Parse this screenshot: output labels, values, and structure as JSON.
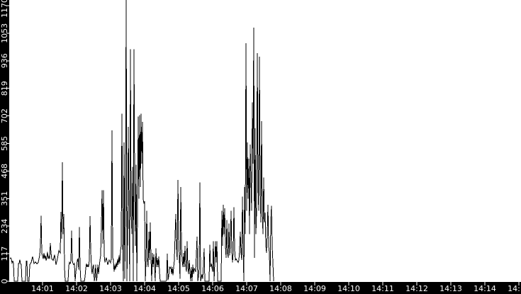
{
  "chart_data": {
    "type": "line",
    "title": "",
    "xlabel": "",
    "ylabel": "",
    "legend": "none",
    "grid": false,
    "background_color": "#ffffff",
    "line_color": "#000000",
    "axis_bar_color": "#000000",
    "axis_text_color": "#ffffff",
    "y_ticks": [
      0,
      117,
      234,
      351,
      468,
      585,
      702,
      819,
      936,
      1053,
      1170
    ],
    "ylim": [
      0,
      1194
    ],
    "y_max_spike_clipped": true,
    "x_ticks": [
      [
        1,
        "14:01"
      ],
      [
        2,
        "14:02"
      ],
      [
        3,
        "14:03"
      ],
      [
        4,
        "14:04"
      ],
      [
        5,
        "14:05"
      ],
      [
        6,
        "14:06"
      ],
      [
        7,
        "14:07"
      ],
      [
        8,
        "14:08"
      ],
      [
        9,
        "14:09"
      ],
      [
        10,
        "14:10"
      ],
      [
        11,
        "14:11"
      ],
      [
        12,
        "14:12"
      ],
      [
        13,
        "14:13"
      ],
      [
        14,
        "14:14"
      ],
      [
        15,
        "14:15"
      ]
    ],
    "x_axis_start": "14:00",
    "x_axis_end": "14:15",
    "data_ends_at_seconds": 467.5,
    "points_unit": "[seconds after 14:00, value]",
    "points": [
      [
        2.5,
        95
      ],
      [
        3.8,
        100
      ],
      [
        5,
        95
      ],
      [
        6.3,
        78
      ],
      [
        7.5,
        85
      ],
      [
        8.8,
        78
      ],
      [
        10,
        0
      ],
      [
        16.3,
        0
      ],
      [
        17.5,
        75
      ],
      [
        18.8,
        75
      ],
      [
        20,
        92
      ],
      [
        21.3,
        74
      ],
      [
        22.5,
        70
      ],
      [
        23.8,
        0
      ],
      [
        30,
        0
      ],
      [
        31.3,
        85
      ],
      [
        32.5,
        85
      ],
      [
        33.8,
        0
      ],
      [
        36.3,
        0
      ],
      [
        37.5,
        70
      ],
      [
        40,
        80
      ],
      [
        42.5,
        105
      ],
      [
        45,
        75
      ],
      [
        47.5,
        82
      ],
      [
        50,
        74
      ],
      [
        52.5,
        80
      ],
      [
        55,
        110
      ],
      [
        56.3,
        150
      ],
      [
        57.5,
        278
      ],
      [
        58.8,
        118
      ],
      [
        61.3,
        95
      ],
      [
        62.5,
        120
      ],
      [
        63.8,
        95
      ],
      [
        65,
        110
      ],
      [
        66.3,
        88
      ],
      [
        67.5,
        100
      ],
      [
        68.8,
        125
      ],
      [
        70,
        95
      ],
      [
        71.3,
        105
      ],
      [
        72.5,
        95
      ],
      [
        73.8,
        163
      ],
      [
        75,
        120
      ],
      [
        76.3,
        95
      ],
      [
        78.8,
        88
      ],
      [
        81.3,
        112
      ],
      [
        83.8,
        70
      ],
      [
        86.3,
        95
      ],
      [
        88.8,
        130
      ],
      [
        91.3,
        120
      ],
      [
        92.5,
        295
      ],
      [
        93.8,
        180
      ],
      [
        95,
        505
      ],
      [
        96.3,
        200
      ],
      [
        97.5,
        285
      ],
      [
        98.8,
        60
      ],
      [
        100,
        0
      ],
      [
        105,
        0
      ],
      [
        106.3,
        65
      ],
      [
        107.5,
        80
      ],
      [
        108.8,
        75
      ],
      [
        110,
        85
      ],
      [
        111.3,
        215
      ],
      [
        112.5,
        90
      ],
      [
        113.8,
        75
      ],
      [
        115,
        70
      ],
      [
        116.3,
        75
      ],
      [
        117.5,
        0
      ],
      [
        118.8,
        40
      ],
      [
        120,
        60
      ],
      [
        121.3,
        90
      ],
      [
        122.5,
        95
      ],
      [
        123.8,
        50
      ],
      [
        125,
        230
      ],
      [
        126.3,
        60
      ],
      [
        127.5,
        0
      ],
      [
        133.8,
        0
      ],
      [
        135,
        20
      ],
      [
        136.3,
        55
      ],
      [
        137.5,
        75
      ],
      [
        138.8,
        60
      ],
      [
        140,
        70
      ],
      [
        141.3,
        60
      ],
      [
        142.5,
        90
      ],
      [
        143.8,
        277
      ],
      [
        145,
        130
      ],
      [
        146.3,
        60
      ],
      [
        147.5,
        30
      ],
      [
        148.8,
        60
      ],
      [
        150,
        70
      ],
      [
        151.3,
        0
      ],
      [
        152.5,
        20
      ],
      [
        153.8,
        70
      ],
      [
        155,
        0
      ],
      [
        156.3,
        20
      ],
      [
        157.5,
        70
      ],
      [
        158.8,
        30
      ],
      [
        160,
        60
      ],
      [
        161.3,
        90
      ],
      [
        162.5,
        110
      ],
      [
        163.8,
        235
      ],
      [
        165,
        387
      ],
      [
        166.3,
        160
      ],
      [
        167.5,
        387
      ],
      [
        168.8,
        110
      ],
      [
        170,
        80
      ],
      [
        172.5,
        100
      ],
      [
        175,
        70
      ],
      [
        177.5,
        90
      ],
      [
        180,
        78
      ],
      [
        181.3,
        95
      ],
      [
        182.5,
        640
      ],
      [
        183.8,
        100
      ],
      [
        185,
        90
      ],
      [
        186.3,
        40
      ],
      [
        187.5,
        70
      ],
      [
        188.8,
        50
      ],
      [
        190,
        80
      ],
      [
        191.3,
        60
      ],
      [
        192.5,
        95
      ],
      [
        193.8,
        70
      ],
      [
        195,
        110
      ],
      [
        196.3,
        75
      ],
      [
        197.5,
        130
      ],
      [
        198.8,
        150
      ],
      [
        200,
        712
      ],
      [
        201.3,
        180
      ],
      [
        202.5,
        0
      ],
      [
        203.8,
        590
      ],
      [
        205,
        10
      ],
      [
        206.3,
        300
      ],
      [
        207.5,
        1210
      ],
      [
        208.8,
        0
      ],
      [
        210,
        200
      ],
      [
        211.3,
        655
      ],
      [
        212.5,
        300
      ],
      [
        213.8,
        0
      ],
      [
        215,
        985
      ],
      [
        216.3,
        300
      ],
      [
        217.5,
        200
      ],
      [
        218.8,
        485
      ],
      [
        220,
        0
      ],
      [
        221.3,
        985
      ],
      [
        222.5,
        400
      ],
      [
        223.8,
        150
      ],
      [
        225,
        495
      ],
      [
        226.3,
        0
      ],
      [
        227.5,
        300
      ],
      [
        228.8,
        700
      ],
      [
        230,
        350
      ],
      [
        231.3,
        705
      ],
      [
        232.5,
        400
      ],
      [
        233.8,
        712
      ],
      [
        235,
        500
      ],
      [
        236.3,
        676
      ],
      [
        237.5,
        350
      ],
      [
        238.8,
        330
      ],
      [
        240,
        340
      ],
      [
        241.3,
        0
      ],
      [
        242.5,
        80
      ],
      [
        243.8,
        300
      ],
      [
        245,
        90
      ],
      [
        246.3,
        60
      ],
      [
        247.5,
        210
      ],
      [
        248.8,
        90
      ],
      [
        250,
        250
      ],
      [
        251.3,
        100
      ],
      [
        252.5,
        0
      ],
      [
        253.8,
        120
      ],
      [
        255,
        60
      ],
      [
        256.3,
        115
      ],
      [
        257.5,
        60
      ],
      [
        258.8,
        0
      ],
      [
        260,
        140
      ],
      [
        261.3,
        60
      ],
      [
        262.5,
        100
      ],
      [
        263.8,
        60
      ],
      [
        265,
        105
      ],
      [
        266.3,
        40
      ],
      [
        267.5,
        0
      ],
      [
        277.5,
        0
      ],
      [
        278.8,
        5
      ],
      [
        280,
        118
      ],
      [
        281.3,
        5
      ],
      [
        282.5,
        20
      ],
      [
        283.8,
        60
      ],
      [
        285,
        55
      ],
      [
        286.3,
        60
      ],
      [
        287.5,
        30
      ],
      [
        288.8,
        60
      ],
      [
        290,
        25
      ],
      [
        291.3,
        60
      ],
      [
        292.5,
        90
      ],
      [
        293.8,
        195
      ],
      [
        295,
        285
      ],
      [
        296.3,
        150
      ],
      [
        297.5,
        90
      ],
      [
        298.8,
        430
      ],
      [
        300,
        200
      ],
      [
        301.3,
        100
      ],
      [
        302.5,
        10
      ],
      [
        303.8,
        400
      ],
      [
        305,
        150
      ],
      [
        306.3,
        90
      ],
      [
        307.5,
        60
      ],
      [
        308.8,
        120
      ],
      [
        310,
        60
      ],
      [
        311.3,
        150
      ],
      [
        312.5,
        70
      ],
      [
        313.8,
        40
      ],
      [
        315,
        170
      ],
      [
        316.3,
        60
      ],
      [
        317.5,
        30
      ],
      [
        318.8,
        90
      ],
      [
        320,
        40
      ],
      [
        321.3,
        0
      ],
      [
        322.5,
        60
      ],
      [
        323.8,
        0
      ],
      [
        325,
        70
      ],
      [
        326.3,
        30
      ],
      [
        327.5,
        55
      ],
      [
        330,
        40
      ],
      [
        332.5,
        190
      ],
      [
        333.8,
        0
      ],
      [
        335,
        20
      ],
      [
        336.3,
        60
      ],
      [
        337.5,
        420
      ],
      [
        338.8,
        0
      ],
      [
        341.3,
        30
      ],
      [
        342.5,
        10
      ],
      [
        345,
        140
      ],
      [
        346.3,
        0
      ],
      [
        353.8,
        0
      ],
      [
        355,
        155
      ],
      [
        356.3,
        60
      ],
      [
        357.5,
        75
      ],
      [
        358.8,
        60
      ],
      [
        360,
        40
      ],
      [
        361.3,
        170
      ],
      [
        362.5,
        0
      ],
      [
        363.8,
        80
      ],
      [
        365,
        170
      ],
      [
        366.3,
        80
      ],
      [
        367.5,
        170
      ],
      [
        368.8,
        0
      ],
      [
        375,
        0
      ],
      [
        376.3,
        300
      ],
      [
        377.5,
        150
      ],
      [
        378.8,
        325
      ],
      [
        380,
        200
      ],
      [
        381.3,
        310
      ],
      [
        382.5,
        150
      ],
      [
        383.8,
        100
      ],
      [
        385,
        260
      ],
      [
        386.3,
        120
      ],
      [
        387.5,
        100
      ],
      [
        388.8,
        245
      ],
      [
        390,
        110
      ],
      [
        391.3,
        150
      ],
      [
        392.5,
        300
      ],
      [
        393.8,
        130
      ],
      [
        395,
        80
      ],
      [
        396.3,
        120
      ],
      [
        397.5,
        315
      ],
      [
        398.8,
        140
      ],
      [
        400,
        90
      ],
      [
        401.3,
        95
      ],
      [
        402.5,
        90
      ],
      [
        403.8,
        85
      ],
      [
        405,
        80
      ],
      [
        406.3,
        90
      ],
      [
        407.5,
        130
      ],
      [
        408.8,
        210
      ],
      [
        410,
        120
      ],
      [
        411.3,
        90
      ],
      [
        412.5,
        360
      ],
      [
        413.8,
        150
      ],
      [
        415,
        0
      ],
      [
        416.3,
        400
      ],
      [
        417.5,
        200
      ],
      [
        418.8,
        1010
      ],
      [
        420,
        300
      ],
      [
        421.3,
        590
      ],
      [
        422.5,
        350
      ],
      [
        423.8,
        520
      ],
      [
        425,
        200
      ],
      [
        426.3,
        580
      ],
      [
        427.5,
        430
      ],
      [
        428.8,
        300
      ],
      [
        430,
        760
      ],
      [
        431.3,
        500
      ],
      [
        432.5,
        1077
      ],
      [
        433.8,
        100
      ],
      [
        435,
        650
      ],
      [
        436.3,
        200
      ],
      [
        437.5,
        300
      ],
      [
        438.8,
        968
      ],
      [
        440,
        400
      ],
      [
        441.3,
        300
      ],
      [
        442.5,
        953
      ],
      [
        443.8,
        400
      ],
      [
        445,
        250
      ],
      [
        446.3,
        680
      ],
      [
        447.5,
        300
      ],
      [
        448.8,
        200
      ],
      [
        450,
        440
      ],
      [
        451.3,
        250
      ],
      [
        452.5,
        290
      ],
      [
        453.8,
        150
      ],
      [
        455,
        120
      ],
      [
        456.3,
        200
      ],
      [
        457.5,
        325
      ],
      [
        458.8,
        150
      ],
      [
        460,
        120
      ],
      [
        461.3,
        0
      ],
      [
        462.5,
        260
      ],
      [
        463.8,
        320
      ],
      [
        465,
        150
      ],
      [
        466.3,
        80
      ],
      [
        467.5,
        0
      ]
    ]
  }
}
